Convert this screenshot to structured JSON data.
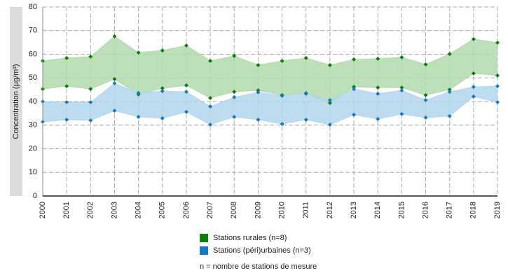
{
  "chart_data": {
    "type": "range_area",
    "y_label": "Concentration (µg/m³)",
    "categories": [
      "2000",
      "2001",
      "2002",
      "2003",
      "2004",
      "2005",
      "2006",
      "2007",
      "2008",
      "2009",
      "2010",
      "2011",
      "2012",
      "2013",
      "2014",
      "2015",
      "2016",
      "2017",
      "2018",
      "2019"
    ],
    "series": [
      {
        "name": "Stations rurales (n=8)",
        "color": "#0a7f0a",
        "fill_color": "#b2d9ad",
        "high": [
          57.2,
          58.4,
          59.0,
          67.6,
          60.7,
          61.6,
          63.7,
          57.2,
          59.3,
          55.4,
          57.2,
          58.4,
          55.4,
          57.8,
          58.1,
          58.7,
          55.7,
          60.1,
          66.4,
          64.9
        ],
        "low": [
          45.3,
          46.5,
          45.3,
          49.5,
          43.0,
          45.6,
          46.8,
          41.5,
          44.1,
          44.7,
          42.7,
          43.3,
          39.4,
          46.2,
          45.9,
          45.9,
          42.7,
          45.0,
          51.9,
          51.0
        ]
      },
      {
        "name": "Stations (péri)urbaines (n=3)",
        "color": "#1a78c2",
        "fill_color": "#b2d6ec",
        "high": [
          40.0,
          39.7,
          39.7,
          47.7,
          43.6,
          44.4,
          44.1,
          37.9,
          41.8,
          43.9,
          42.4,
          43.6,
          40.6,
          45.3,
          43.3,
          44.7,
          40.6,
          44.1,
          46.2,
          46.5
        ],
        "low": [
          31.4,
          32.3,
          32.0,
          36.1,
          33.5,
          32.9,
          35.6,
          30.2,
          33.5,
          32.3,
          30.5,
          32.3,
          30.2,
          34.4,
          32.6,
          34.7,
          33.2,
          33.8,
          42.1,
          39.7
        ]
      }
    ],
    "note": "n = nombre de stations de mesure",
    "ylim": [
      0,
      80
    ],
    "yticks": [
      0,
      10,
      20,
      30,
      40,
      50,
      60,
      70,
      80
    ],
    "grid": true
  }
}
